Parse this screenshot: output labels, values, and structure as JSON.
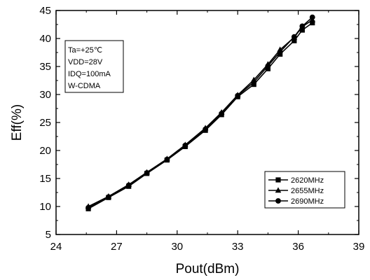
{
  "chart_data": {
    "type": "line",
    "title": "",
    "xlabel": "Pout(dBm)",
    "ylabel": "Eff(%)",
    "xlim": [
      24,
      39
    ],
    "ylim": [
      5,
      45
    ],
    "xticks": [
      24,
      27,
      30,
      33,
      36,
      39
    ],
    "yticks": [
      5,
      10,
      15,
      20,
      25,
      30,
      35,
      40,
      45
    ],
    "grid": false,
    "legend_position": "bottom-right",
    "annotation": [
      "Ta=+25℃",
      "VDD=28V",
      "IDQ=100mA",
      "W-CDMA"
    ],
    "series": [
      {
        "name": "2620MHz",
        "marker": "square",
        "x": [
          25.6,
          26.6,
          27.6,
          28.5,
          29.5,
          30.4,
          31.4,
          32.2,
          33.0,
          33.8,
          34.5,
          35.1,
          35.8,
          36.2,
          36.7
        ],
        "y": [
          9.6,
          11.6,
          13.6,
          15.9,
          18.3,
          20.7,
          23.6,
          26.4,
          29.6,
          31.8,
          34.6,
          37.2,
          39.6,
          41.5,
          42.8
        ]
      },
      {
        "name": "2655MHz",
        "marker": "triangle",
        "x": [
          25.6,
          26.6,
          27.6,
          28.5,
          29.5,
          30.4,
          31.4,
          32.2,
          33.0,
          33.8,
          34.5,
          35.1,
          35.8,
          36.2,
          36.7
        ],
        "y": [
          10.0,
          11.8,
          13.9,
          16.1,
          18.5,
          21.0,
          24.0,
          26.8,
          29.9,
          32.6,
          35.4,
          38.0,
          40.2,
          42.1,
          43.3
        ]
      },
      {
        "name": "2690MHz",
        "marker": "circle",
        "x": [
          25.6,
          26.6,
          27.6,
          28.5,
          29.5,
          30.4,
          31.4,
          32.2,
          33.0,
          33.8,
          34.5,
          35.1,
          35.8,
          36.2,
          36.7
        ],
        "y": [
          9.8,
          11.7,
          13.8,
          16.0,
          18.4,
          20.9,
          23.8,
          26.6,
          29.8,
          32.2,
          35.1,
          37.6,
          40.3,
          42.2,
          43.8
        ]
      }
    ]
  }
}
